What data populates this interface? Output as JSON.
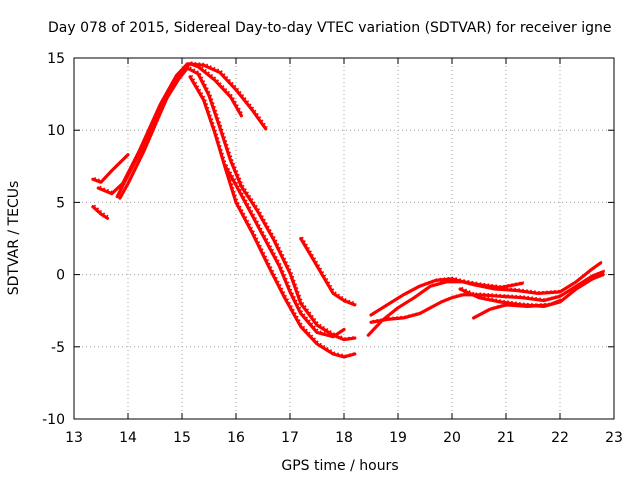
{
  "chart_data": {
    "type": "line",
    "title": "Day 078 of 2015, Sidereal Day-to-day VTEC variation (SDTVAR) for receiver igne",
    "xlabel": "GPS time / hours",
    "ylabel": "SDTVAR / TECUs",
    "xlim": [
      13,
      23
    ],
    "ylim": [
      -10,
      15
    ],
    "xticks": [
      13,
      14,
      15,
      16,
      17,
      18,
      19,
      20,
      21,
      22,
      23
    ],
    "yticks": [
      -10,
      -5,
      0,
      5,
      10,
      15
    ],
    "grid": true,
    "marker": "+",
    "color": "#ff0000",
    "series": [
      {
        "name": "arc-1",
        "points": [
          [
            13.35,
            4.7
          ],
          [
            13.5,
            4.2
          ],
          [
            13.62,
            3.9
          ]
        ]
      },
      {
        "name": "arc-2",
        "points": [
          [
            13.35,
            6.6
          ],
          [
            13.5,
            6.4
          ],
          [
            13.7,
            7.2
          ],
          [
            14.0,
            8.3
          ]
        ]
      },
      {
        "name": "arc-3",
        "points": [
          [
            13.45,
            6.0
          ],
          [
            13.7,
            5.6
          ],
          [
            13.9,
            6.3
          ],
          [
            14.2,
            8.5
          ],
          [
            14.6,
            11.8
          ],
          [
            14.9,
            13.8
          ],
          [
            15.1,
            14.6
          ],
          [
            15.4,
            14.5
          ],
          [
            15.7,
            14.0
          ],
          [
            16.0,
            12.8
          ],
          [
            16.3,
            11.4
          ],
          [
            16.55,
            10.1
          ]
        ]
      },
      {
        "name": "arc-4",
        "points": [
          [
            13.85,
            5.3
          ],
          [
            14.0,
            6.3
          ],
          [
            14.3,
            8.6
          ],
          [
            14.6,
            11.2
          ],
          [
            14.8,
            12.9
          ],
          [
            15.0,
            14.1
          ],
          [
            15.15,
            14.6
          ],
          [
            15.3,
            14.4
          ],
          [
            15.6,
            13.5
          ],
          [
            15.9,
            12.3
          ],
          [
            16.1,
            11.0
          ]
        ]
      },
      {
        "name": "arc-5",
        "points": [
          [
            13.8,
            5.4
          ],
          [
            14.1,
            7.6
          ],
          [
            14.4,
            9.8
          ],
          [
            14.7,
            12.1
          ],
          [
            14.95,
            13.6
          ],
          [
            15.1,
            14.3
          ],
          [
            15.3,
            13.9
          ],
          [
            15.5,
            12.4
          ],
          [
            15.7,
            10.2
          ],
          [
            15.9,
            7.9
          ],
          [
            16.1,
            6.1
          ],
          [
            16.4,
            4.4
          ],
          [
            16.7,
            2.4
          ],
          [
            17.0,
            0.1
          ],
          [
            17.2,
            -2.0
          ],
          [
            17.5,
            -3.5
          ],
          [
            17.8,
            -4.2
          ],
          [
            18.0,
            -4.5
          ],
          [
            18.2,
            -4.4
          ]
        ]
      },
      {
        "name": "arc-6",
        "points": [
          [
            15.15,
            13.7
          ],
          [
            15.4,
            12.1
          ],
          [
            15.6,
            9.9
          ],
          [
            15.8,
            7.4
          ],
          [
            16.0,
            5.0
          ],
          [
            16.3,
            2.9
          ],
          [
            16.6,
            0.6
          ],
          [
            16.9,
            -1.6
          ],
          [
            17.2,
            -3.6
          ],
          [
            17.5,
            -4.8
          ],
          [
            17.8,
            -5.5
          ],
          [
            18.0,
            -5.7
          ],
          [
            18.2,
            -5.5
          ]
        ]
      },
      {
        "name": "arc-7",
        "points": [
          [
            15.8,
            7.5
          ],
          [
            16.0,
            6.2
          ],
          [
            16.3,
            4.1
          ],
          [
            16.6,
            2.0
          ],
          [
            16.8,
            0.6
          ],
          [
            17.0,
            -1.2
          ],
          [
            17.2,
            -2.7
          ],
          [
            17.5,
            -4.0
          ],
          [
            17.8,
            -4.3
          ],
          [
            18.0,
            -3.8
          ]
        ]
      },
      {
        "name": "arc-8",
        "points": [
          [
            17.2,
            2.5
          ],
          [
            17.5,
            0.6
          ],
          [
            17.8,
            -1.3
          ],
          [
            18.0,
            -1.8
          ],
          [
            18.2,
            -2.1
          ]
        ]
      },
      {
        "name": "arc-9",
        "points": [
          [
            18.45,
            -4.2
          ],
          [
            18.7,
            -3.2
          ],
          [
            19.0,
            -2.3
          ],
          [
            19.3,
            -1.6
          ],
          [
            19.6,
            -0.8
          ],
          [
            19.9,
            -0.5
          ],
          [
            20.2,
            -0.5
          ],
          [
            20.5,
            -0.7
          ],
          [
            20.9,
            -0.9
          ],
          [
            21.3,
            -0.6
          ]
        ]
      },
      {
        "name": "arc-10",
        "points": [
          [
            18.5,
            -2.8
          ],
          [
            18.8,
            -2.1
          ],
          [
            19.1,
            -1.4
          ],
          [
            19.4,
            -0.8
          ],
          [
            19.7,
            -0.4
          ],
          [
            20.0,
            -0.3
          ],
          [
            20.4,
            -0.7
          ],
          [
            20.8,
            -1.0
          ],
          [
            21.2,
            -1.1
          ],
          [
            21.6,
            -1.3
          ],
          [
            22.0,
            -1.2
          ],
          [
            22.3,
            -0.5
          ],
          [
            22.6,
            0.4
          ],
          [
            22.75,
            0.8
          ]
        ]
      },
      {
        "name": "arc-11",
        "points": [
          [
            18.5,
            -3.3
          ],
          [
            18.8,
            -3.1
          ],
          [
            19.1,
            -3.0
          ],
          [
            19.4,
            -2.7
          ],
          [
            19.6,
            -2.3
          ],
          [
            19.8,
            -1.9
          ],
          [
            20.0,
            -1.6
          ],
          [
            20.2,
            -1.4
          ],
          [
            20.5,
            -1.4
          ],
          [
            20.9,
            -1.5
          ],
          [
            21.3,
            -1.6
          ],
          [
            21.7,
            -1.8
          ],
          [
            22.0,
            -1.5
          ],
          [
            22.3,
            -0.8
          ],
          [
            22.6,
            -0.1
          ],
          [
            22.8,
            0.2
          ]
        ]
      },
      {
        "name": "arc-12",
        "points": [
          [
            20.15,
            -1.0
          ],
          [
            20.5,
            -1.6
          ],
          [
            20.9,
            -1.9
          ],
          [
            21.3,
            -2.1
          ],
          [
            21.7,
            -2.2
          ],
          [
            22.0,
            -1.9
          ],
          [
            22.3,
            -1.0
          ],
          [
            22.6,
            -0.3
          ],
          [
            22.8,
            0.0
          ]
        ]
      },
      {
        "name": "arc-13",
        "points": [
          [
            20.4,
            -3.0
          ],
          [
            20.7,
            -2.4
          ],
          [
            21.0,
            -2.1
          ],
          [
            21.4,
            -2.2
          ],
          [
            21.8,
            -2.1
          ],
          [
            22.0,
            -1.8
          ]
        ]
      }
    ]
  }
}
